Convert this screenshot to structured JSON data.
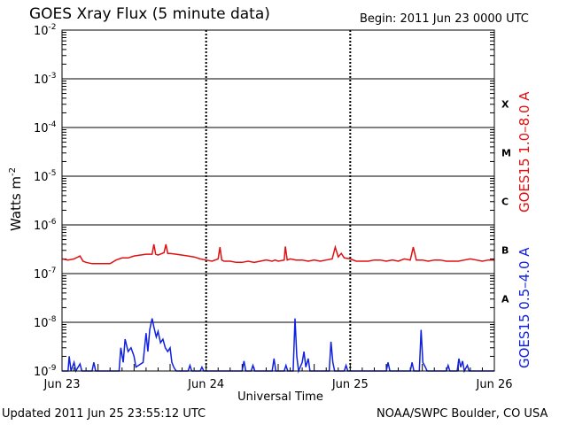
{
  "header": {
    "title": "GOES Xray Flux (5 minute data)",
    "begin": "Begin:  2011 Jun 23 0000 UTC"
  },
  "footer": {
    "updated": "Updated 2011 Jun 25 23:55:12 UTC",
    "credit": "NOAA/SWPC Boulder, CO USA"
  },
  "chart_data": {
    "type": "line",
    "title": "GOES Xray Flux (5 minute data)",
    "xlabel": "Universal Time",
    "ylabel": "Watts m",
    "ylabel_sup": "-2",
    "y_scale": "log",
    "ylim": [
      1e-09,
      0.01
    ],
    "xlim": [
      0,
      72
    ],
    "x_unit": "hours since 2011 Jun 23 0000 UTC",
    "grid": true,
    "y_ticks": [
      {
        "base": "10",
        "exp": "-9"
      },
      {
        "base": "10",
        "exp": "-8"
      },
      {
        "base": "10",
        "exp": "-7"
      },
      {
        "base": "10",
        "exp": "-6"
      },
      {
        "base": "10",
        "exp": "-5"
      },
      {
        "base": "10",
        "exp": "-4"
      },
      {
        "base": "10",
        "exp": "-3"
      },
      {
        "base": "10",
        "exp": "-2"
      }
    ],
    "x_ticks": [
      {
        "label": "Jun 23",
        "x": 0
      },
      {
        "label": "Jun 24",
        "x": 24
      },
      {
        "label": "Jun 25",
        "x": 48
      },
      {
        "label": "Jun 26",
        "x": 72
      }
    ],
    "flare_classes": [
      {
        "label": "A",
        "exp": -7.5
      },
      {
        "label": "B",
        "exp": -6.5
      },
      {
        "label": "C",
        "exp": -5.5
      },
      {
        "label": "M",
        "exp": -4.5
      },
      {
        "label": "X",
        "exp": -3.5
      }
    ],
    "series": [
      {
        "name": "GOES15 1.0–8.0 A",
        "color": "#e01010",
        "points": [
          [
            0,
            2e-07
          ],
          [
            1,
            1.9e-07
          ],
          [
            2,
            2e-07
          ],
          [
            3,
            2.3e-07
          ],
          [
            3.5,
            1.8e-07
          ],
          [
            4,
            1.7e-07
          ],
          [
            5,
            1.6e-07
          ],
          [
            6,
            1.6e-07
          ],
          [
            7,
            1.6e-07
          ],
          [
            8,
            1.6e-07
          ],
          [
            9,
            1.9e-07
          ],
          [
            10,
            2.1e-07
          ],
          [
            11,
            2.1e-07
          ],
          [
            12,
            2.3e-07
          ],
          [
            13,
            2.4e-07
          ],
          [
            14,
            2.5e-07
          ],
          [
            15,
            2.5e-07
          ],
          [
            15.3,
            4e-07
          ],
          [
            15.6,
            2.5e-07
          ],
          [
            16,
            2.4e-07
          ],
          [
            17,
            2.7e-07
          ],
          [
            17.3,
            4e-07
          ],
          [
            17.6,
            2.6e-07
          ],
          [
            18,
            2.6e-07
          ],
          [
            19,
            2.5e-07
          ],
          [
            20,
            2.4e-07
          ],
          [
            21,
            2.3e-07
          ],
          [
            22,
            2.2e-07
          ],
          [
            23,
            2e-07
          ],
          [
            24,
            1.9e-07
          ],
          [
            25,
            1.8e-07
          ],
          [
            26,
            2e-07
          ],
          [
            26.3,
            3.5e-07
          ],
          [
            26.6,
            1.9e-07
          ],
          [
            27,
            1.8e-07
          ],
          [
            28,
            1.8e-07
          ],
          [
            29,
            1.7e-07
          ],
          [
            30,
            1.7e-07
          ],
          [
            31,
            1.8e-07
          ],
          [
            32,
            1.7e-07
          ],
          [
            33,
            1.8e-07
          ],
          [
            34,
            1.9e-07
          ],
          [
            35,
            1.8e-07
          ],
          [
            35.5,
            1.9e-07
          ],
          [
            36,
            1.8e-07
          ],
          [
            37,
            1.9e-07
          ],
          [
            37.2,
            3.6e-07
          ],
          [
            37.5,
            1.9e-07
          ],
          [
            38,
            2e-07
          ],
          [
            39,
            1.9e-07
          ],
          [
            40,
            1.9e-07
          ],
          [
            41,
            1.8e-07
          ],
          [
            42,
            1.9e-07
          ],
          [
            43,
            1.8e-07
          ],
          [
            44,
            1.9e-07
          ],
          [
            45,
            2e-07
          ],
          [
            45.5,
            3.5e-07
          ],
          [
            46,
            2.2e-07
          ],
          [
            46.5,
            2.6e-07
          ],
          [
            47,
            2.1e-07
          ],
          [
            48,
            2e-07
          ],
          [
            49,
            1.8e-07
          ],
          [
            50,
            1.8e-07
          ],
          [
            51,
            1.8e-07
          ],
          [
            52,
            1.9e-07
          ],
          [
            53,
            1.9e-07
          ],
          [
            54,
            1.8e-07
          ],
          [
            55,
            1.9e-07
          ],
          [
            56,
            1.8e-07
          ],
          [
            57,
            2e-07
          ],
          [
            58,
            1.9e-07
          ],
          [
            58.5,
            3.5e-07
          ],
          [
            59,
            1.9e-07
          ],
          [
            60,
            1.9e-07
          ],
          [
            61,
            1.8e-07
          ],
          [
            62,
            1.9e-07
          ],
          [
            63,
            1.9e-07
          ],
          [
            64,
            1.8e-07
          ],
          [
            65,
            1.8e-07
          ],
          [
            66,
            1.8e-07
          ],
          [
            67,
            1.9e-07
          ],
          [
            68,
            2e-07
          ],
          [
            69,
            1.9e-07
          ],
          [
            70,
            1.8e-07
          ],
          [
            71,
            1.9e-07
          ],
          [
            72,
            1.9e-07
          ]
        ]
      },
      {
        "name": "GOES15 0.5–4.0 A",
        "color": "#1020e0",
        "points": [
          [
            0,
            1e-09
          ],
          [
            1,
            1e-09
          ],
          [
            1.2,
            2e-09
          ],
          [
            1.5,
            1e-09
          ],
          [
            2,
            1.5e-09
          ],
          [
            2.3,
            1e-09
          ],
          [
            3,
            1.4e-09
          ],
          [
            3.3,
            1e-09
          ],
          [
            5,
            1e-09
          ],
          [
            5.3,
            1.5e-09
          ],
          [
            5.6,
            1e-09
          ],
          [
            8,
            1e-09
          ],
          [
            9.5,
            1e-09
          ],
          [
            9.8,
            3e-09
          ],
          [
            10.2,
            1.5e-09
          ],
          [
            10.5,
            4.5e-09
          ],
          [
            11,
            2.5e-09
          ],
          [
            11.5,
            3e-09
          ],
          [
            12,
            2e-09
          ],
          [
            12.3,
            1.2e-09
          ],
          [
            13.5,
            1.5e-09
          ],
          [
            14,
            6e-09
          ],
          [
            14.3,
            2.5e-09
          ],
          [
            14.6,
            7e-09
          ],
          [
            15,
            1.2e-08
          ],
          [
            15.3,
            8e-09
          ],
          [
            15.7,
            5e-09
          ],
          [
            16,
            6.5e-09
          ],
          [
            16.4,
            3.8e-09
          ],
          [
            16.8,
            4.5e-09
          ],
          [
            17.2,
            3e-09
          ],
          [
            17.6,
            2.5e-09
          ],
          [
            18,
            3e-09
          ],
          [
            18.3,
            1.5e-09
          ],
          [
            18.6,
            1.2e-09
          ],
          [
            19,
            1e-09
          ],
          [
            20,
            1e-09
          ],
          [
            21,
            1e-09
          ],
          [
            21.3,
            1.3e-09
          ],
          [
            21.6,
            1e-09
          ],
          [
            23,
            1e-09
          ],
          [
            23.3,
            1.2e-09
          ],
          [
            23.6,
            1e-09
          ],
          [
            30,
            1e-09
          ],
          [
            30.3,
            1.6e-09
          ],
          [
            30.6,
            1e-09
          ],
          [
            31.5,
            1e-09
          ],
          [
            31.8,
            1.3e-09
          ],
          [
            32.1,
            1e-09
          ],
          [
            35,
            1e-09
          ],
          [
            35.3,
            1.8e-09
          ],
          [
            35.6,
            1e-09
          ],
          [
            37,
            1e-09
          ],
          [
            37.3,
            1.3e-09
          ],
          [
            37.6,
            1e-09
          ],
          [
            38.5,
            1e-09
          ],
          [
            38.8,
            1.2e-08
          ],
          [
            39.1,
            2e-09
          ],
          [
            39.4,
            1e-09
          ],
          [
            40,
            1.5e-09
          ],
          [
            40.3,
            2.5e-09
          ],
          [
            40.6,
            1.2e-09
          ],
          [
            41,
            1.8e-09
          ],
          [
            41.3,
            1e-09
          ],
          [
            44.5,
            1e-09
          ],
          [
            44.8,
            4e-09
          ],
          [
            45.1,
            1.5e-09
          ],
          [
            45.4,
            1e-09
          ],
          [
            47,
            1e-09
          ],
          [
            47.3,
            1.3e-09
          ],
          [
            47.6,
            1e-09
          ],
          [
            54,
            1e-09
          ],
          [
            54.3,
            1.5e-09
          ],
          [
            54.6,
            1e-09
          ],
          [
            58,
            1e-09
          ],
          [
            58.3,
            1.5e-09
          ],
          [
            58.6,
            1e-09
          ],
          [
            59.5,
            1e-09
          ],
          [
            59.8,
            7e-09
          ],
          [
            60.1,
            1.5e-09
          ],
          [
            60.5,
            1.2e-09
          ],
          [
            60.8,
            1e-09
          ],
          [
            64,
            1e-09
          ],
          [
            64.3,
            1.3e-09
          ],
          [
            64.6,
            1e-09
          ],
          [
            65.8,
            1e-09
          ],
          [
            66.1,
            1.8e-09
          ],
          [
            66.4,
            1.2e-09
          ],
          [
            66.7,
            1.6e-09
          ],
          [
            67,
            1e-09
          ],
          [
            67.5,
            1.3e-09
          ],
          [
            67.8,
            1e-09
          ],
          [
            72,
            1e-09
          ]
        ]
      }
    ]
  }
}
